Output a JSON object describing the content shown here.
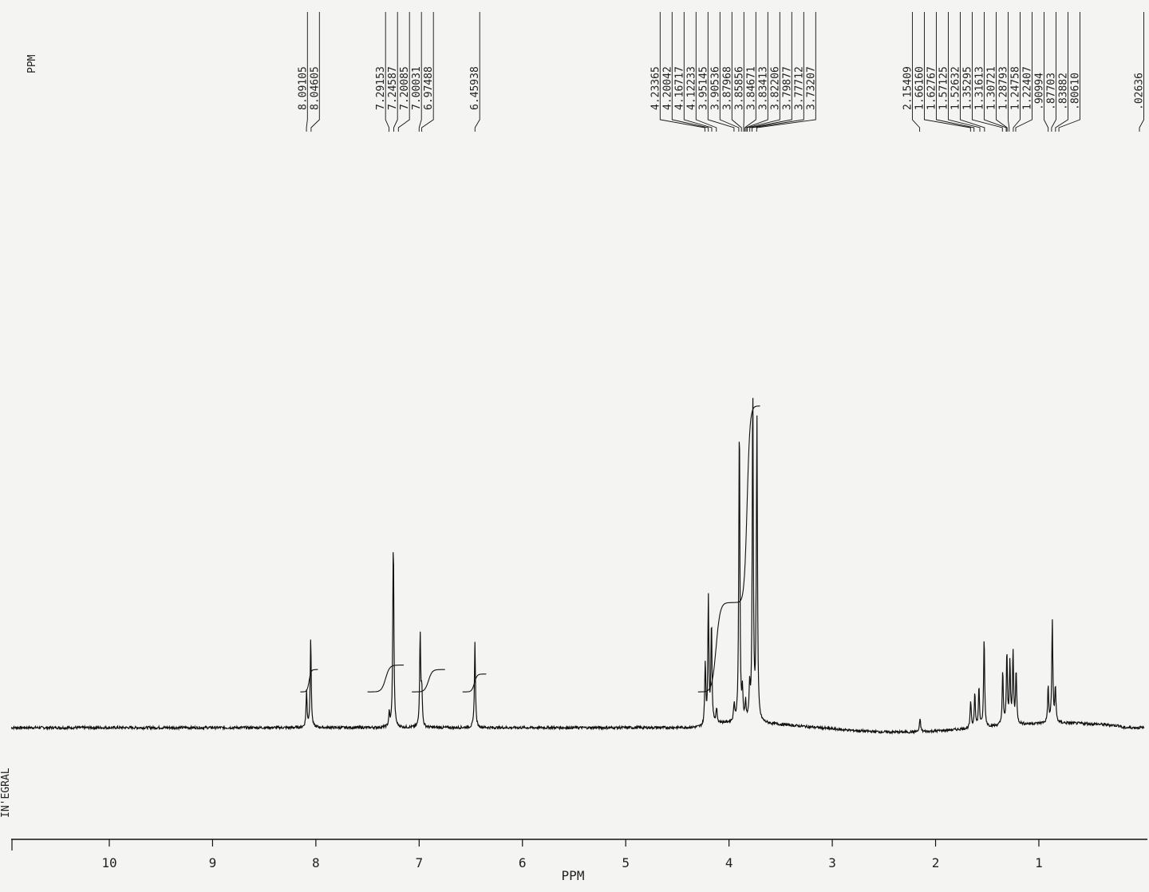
{
  "chart_data": {
    "type": "line",
    "title": "",
    "xlabel": "PPM",
    "ylabel": "",
    "corner_label": "PPM",
    "integral_label": "IN'EGRAL",
    "x_reversed": true,
    "xlim": [
      10.95,
      -0.02
    ],
    "xticks": [
      10,
      9,
      8,
      7,
      6,
      5,
      4,
      3,
      2,
      1
    ],
    "peak_label_groups": [
      {
        "center": 8.07,
        "labels": [
          "8.09105",
          "8.04605"
        ]
      },
      {
        "center": 7.14,
        "labels": [
          "7.29153",
          "7.24587",
          "7.20085",
          "7.00031",
          "6.97488"
        ]
      },
      {
        "center": 6.46,
        "labels": [
          "6.45938"
        ]
      },
      {
        "center": 3.96,
        "labels": [
          "4.23365",
          "4.20042",
          "4.16717",
          "4.12233",
          "3.95145",
          "3.90536",
          "3.87968",
          "3.85856",
          "3.84671",
          "3.83413",
          "3.82206",
          "3.79877",
          "3.77712",
          "3.73207"
        ]
      },
      {
        "center": 1.46,
        "labels": [
          "2.15409",
          "1.66160",
          "1.62767",
          "1.57125",
          "1.52632",
          "1.35295",
          "1.31613",
          "1.30721",
          "1.28793",
          "1.24758",
          "1.22407",
          ".90994",
          ".87703",
          ".83882",
          ".80610"
        ]
      },
      {
        "center": 0.03,
        "labels": [
          ".02636"
        ]
      }
    ],
    "peaks": [
      {
        "ppm": 8.05,
        "height": 0.2
      },
      {
        "ppm": 8.09,
        "height": 0.08
      },
      {
        "ppm": 7.25,
        "height": 0.42
      },
      {
        "ppm": 7.29,
        "height": 0.03
      },
      {
        "ppm": 6.99,
        "height": 0.21
      },
      {
        "ppm": 6.975,
        "height": 0.08
      },
      {
        "ppm": 6.46,
        "height": 0.19
      },
      {
        "ppm": 4.23,
        "height": 0.14
      },
      {
        "ppm": 4.2,
        "height": 0.28
      },
      {
        "ppm": 4.17,
        "height": 0.22
      },
      {
        "ppm": 4.12,
        "height": 0.03
      },
      {
        "ppm": 3.95,
        "height": 0.04
      },
      {
        "ppm": 3.9,
        "height": 0.68
      },
      {
        "ppm": 3.87,
        "height": 0.06
      },
      {
        "ppm": 3.84,
        "height": 0.04
      },
      {
        "ppm": 3.8,
        "height": 0.07
      },
      {
        "ppm": 3.77,
        "height": 0.75
      },
      {
        "ppm": 3.73,
        "height": 0.68
      },
      {
        "ppm": 2.15,
        "height": 0.03
      },
      {
        "ppm": 1.66,
        "height": 0.06
      },
      {
        "ppm": 1.62,
        "height": 0.08
      },
      {
        "ppm": 1.58,
        "height": 0.09
      },
      {
        "ppm": 1.53,
        "height": 0.2
      },
      {
        "ppm": 1.35,
        "height": 0.12
      },
      {
        "ppm": 1.31,
        "height": 0.16
      },
      {
        "ppm": 1.28,
        "height": 0.14
      },
      {
        "ppm": 1.25,
        "height": 0.16
      },
      {
        "ppm": 1.22,
        "height": 0.12
      },
      {
        "ppm": 0.91,
        "height": 0.08
      },
      {
        "ppm": 0.87,
        "height": 0.23
      },
      {
        "ppm": 0.84,
        "height": 0.08
      }
    ],
    "integral_steps": [
      {
        "from": 8.15,
        "to": 7.98,
        "level_start": 0.08,
        "level_end": 0.13
      },
      {
        "from": 7.5,
        "to": 7.15,
        "level_start": 0.08,
        "level_end": 0.14
      },
      {
        "from": 7.07,
        "to": 6.75,
        "level_start": 0.08,
        "level_end": 0.13
      },
      {
        "from": 6.58,
        "to": 6.35,
        "level_start": 0.08,
        "level_end": 0.12
      },
      {
        "from": 4.3,
        "to": 3.95,
        "level_start": 0.08,
        "level_end": 0.28
      },
      {
        "from": 3.95,
        "to": 3.7,
        "level_start": 0.28,
        "level_end": 0.72
      }
    ]
  }
}
